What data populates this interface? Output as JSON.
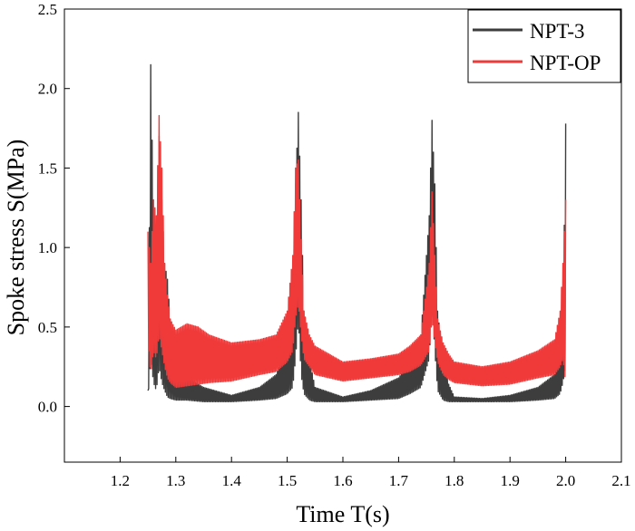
{
  "chart_data": {
    "type": "line",
    "title": "",
    "xlabel": "Time T(s)",
    "ylabel": "Spoke stress S(MPa)",
    "xlim": [
      1.1,
      2.1
    ],
    "ylim": [
      -0.35,
      2.5
    ],
    "xticks": [
      "1.2",
      "1.3",
      "1.4",
      "1.5",
      "1.6",
      "1.7",
      "1.8",
      "1.9",
      "2.0",
      "2.1"
    ],
    "yticks": [
      "0.0",
      "0.5",
      "1.0",
      "1.5",
      "2.0",
      "2.5"
    ],
    "legend_position": "top-right",
    "grid": false,
    "series": [
      {
        "name": "NPT-3",
        "color": "#3d3d3d",
        "x": [
          1.25,
          1.255,
          1.26,
          1.265,
          1.27,
          1.275,
          1.28,
          1.285,
          1.29,
          1.3,
          1.32,
          1.35,
          1.4,
          1.45,
          1.48,
          1.5,
          1.51,
          1.515,
          1.52,
          1.525,
          1.53,
          1.54,
          1.55,
          1.6,
          1.65,
          1.7,
          1.72,
          1.74,
          1.755,
          1.76,
          1.765,
          1.77,
          1.78,
          1.79,
          1.8,
          1.85,
          1.9,
          1.95,
          1.98,
          1.99,
          1.995,
          2.0
        ],
        "y": [
          0.1,
          2.15,
          1.2,
          0.75,
          1.7,
          1.3,
          0.9,
          0.8,
          0.55,
          0.32,
          0.18,
          0.12,
          0.07,
          0.12,
          0.2,
          0.38,
          0.8,
          1.4,
          1.85,
          1.3,
          0.6,
          0.3,
          0.12,
          0.06,
          0.1,
          0.18,
          0.28,
          0.45,
          1.2,
          1.8,
          1.4,
          0.6,
          0.3,
          0.14,
          0.06,
          0.05,
          0.07,
          0.12,
          0.2,
          0.3,
          0.5,
          1.78
        ],
        "min": [
          0.05,
          0.3,
          0.15,
          0.1,
          0.25,
          0.15,
          0.1,
          0.06,
          0.05,
          0.04,
          0.04,
          0.03,
          0.03,
          0.04,
          0.05,
          0.08,
          0.12,
          0.3,
          0.55,
          0.2,
          0.08,
          0.04,
          0.03,
          0.03,
          0.04,
          0.05,
          0.08,
          0.12,
          0.3,
          0.65,
          0.35,
          0.1,
          0.04,
          0.03,
          0.03,
          0.03,
          0.03,
          0.04,
          0.05,
          0.08,
          0.15,
          0.25
        ]
      },
      {
        "name": "NPT-OP",
        "color": "#f03a3a",
        "x": [
          1.25,
          1.255,
          1.26,
          1.265,
          1.27,
          1.275,
          1.28,
          1.285,
          1.29,
          1.3,
          1.32,
          1.34,
          1.36,
          1.4,
          1.45,
          1.48,
          1.5,
          1.51,
          1.515,
          1.52,
          1.525,
          1.53,
          1.54,
          1.55,
          1.6,
          1.65,
          1.7,
          1.72,
          1.74,
          1.755,
          1.76,
          1.765,
          1.77,
          1.78,
          1.79,
          1.8,
          1.85,
          1.9,
          1.95,
          1.98,
          1.99,
          1.995,
          2.0
        ],
        "y": [
          1.1,
          0.9,
          1.3,
          1.2,
          1.83,
          1.5,
          0.9,
          0.7,
          0.55,
          0.48,
          0.52,
          0.5,
          0.45,
          0.4,
          0.42,
          0.45,
          0.6,
          0.95,
          1.5,
          1.55,
          1.05,
          0.6,
          0.45,
          0.38,
          0.28,
          0.3,
          0.33,
          0.38,
          0.45,
          0.9,
          1.35,
          0.95,
          0.55,
          0.4,
          0.33,
          0.28,
          0.25,
          0.28,
          0.35,
          0.42,
          0.6,
          0.9,
          1.3
        ],
        "min": [
          0.4,
          0.2,
          0.35,
          0.3,
          0.45,
          0.35,
          0.25,
          0.18,
          0.15,
          0.12,
          0.13,
          0.14,
          0.15,
          0.16,
          0.2,
          0.22,
          0.28,
          0.35,
          0.55,
          0.65,
          0.45,
          0.3,
          0.25,
          0.2,
          0.16,
          0.18,
          0.2,
          0.22,
          0.26,
          0.35,
          0.55,
          0.4,
          0.28,
          0.2,
          0.17,
          0.15,
          0.13,
          0.14,
          0.18,
          0.2,
          0.25,
          0.3,
          0.15
        ]
      }
    ]
  }
}
